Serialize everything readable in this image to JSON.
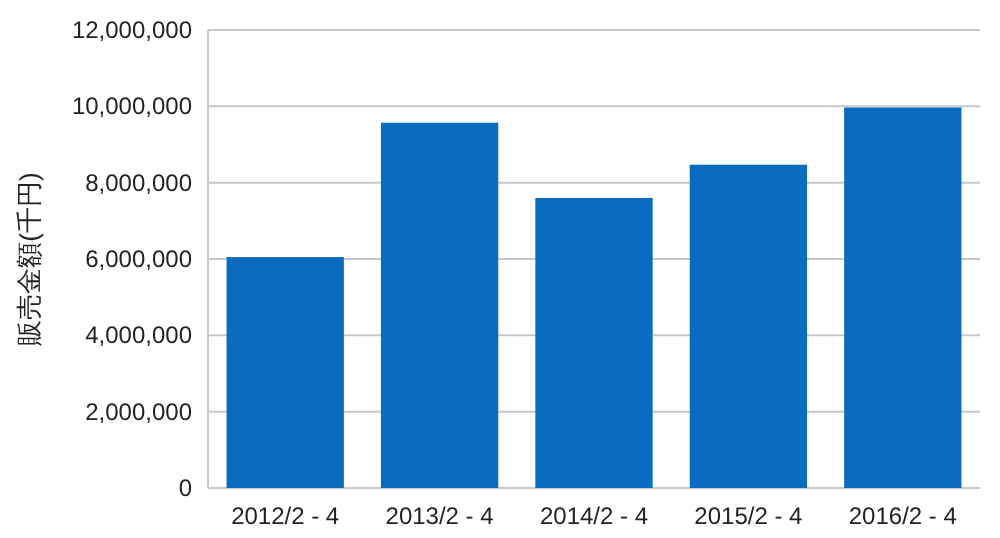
{
  "chart_data": {
    "type": "bar",
    "ylabel": "販売金額(千円)",
    "categories": [
      "2012/2 - 4",
      "2013/2 - 4",
      "2014/2 - 4",
      "2015/2 - 4",
      "2016/2 - 4"
    ],
    "values": [
      6050000,
      9570000,
      7600000,
      8470000,
      9970000
    ],
    "color": "#0a6cc0",
    "ylim": [
      0,
      12000000
    ],
    "yticks": [
      {
        "value": 0,
        "label": "0"
      },
      {
        "value": 2000000,
        "label": "2,000,000"
      },
      {
        "value": 4000000,
        "label": "4,000,000"
      },
      {
        "value": 6000000,
        "label": "6,000,000"
      },
      {
        "value": 8000000,
        "label": "8,000,000"
      },
      {
        "value": 10000000,
        "label": "10,000,000"
      },
      {
        "value": 12000000,
        "label": "12,000,000"
      }
    ],
    "grid": "y"
  }
}
